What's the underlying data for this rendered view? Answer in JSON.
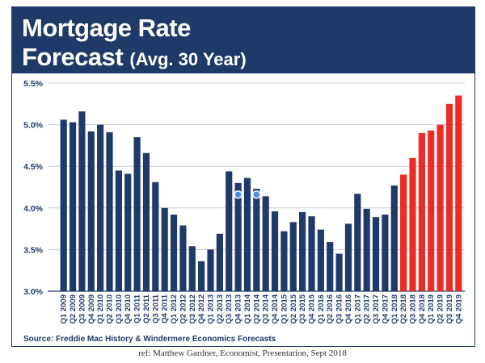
{
  "title_line1": "Mortgage Rate",
  "title_line2": "Forecast",
  "title_paren": "(Avg. 30 Year)",
  "source": "Source: Freddie Mac History & Windermere Economics Forecasts",
  "ref": "ref: Matthew Gardner, Economist, Presentation, Sept 2018",
  "chart_data": {
    "type": "bar",
    "title": "Mortgage Rate Forecast (Avg. 30 Year)",
    "xlabel": "",
    "ylabel": "",
    "ylim": [
      3.0,
      5.5
    ],
    "yticks": [
      "3.0%",
      "3.5%",
      "4.0%",
      "4.5%",
      "5.0%",
      "5.5%"
    ],
    "grid": true,
    "categories": [
      "Q1 2009",
      "Q2 2009",
      "Q3 2009",
      "Q4 2009",
      "Q1 2010",
      "Q2 2010",
      "Q3 2010",
      "Q4 2010",
      "Q1 2011",
      "Q2 2011",
      "Q3 2011",
      "Q4 2011",
      "Q1 2012",
      "Q2 2012",
      "Q3 2012",
      "Q4 2012",
      "Q1 2013",
      "Q2 2013",
      "Q3 2013",
      "Q4 2013",
      "Q1 2014",
      "Q2 2014",
      "Q3 2014",
      "Q4 2014",
      "Q1 2015",
      "Q2 2015",
      "Q3 2015",
      "Q4 2015",
      "Q1 2016",
      "Q2 2016",
      "Q3 2016",
      "Q4 2016",
      "Q1 2017",
      "Q2 2017",
      "Q3 2017",
      "Q4 2017",
      "Q1 2018",
      "Q2 2018",
      "Q3 2018",
      "Q4 2018",
      "Q1 2019",
      "Q2 2019",
      "Q3 2019",
      "Q4 2019"
    ],
    "values": [
      5.06,
      5.03,
      5.16,
      4.92,
      5.0,
      4.91,
      4.45,
      4.41,
      4.85,
      4.66,
      4.31,
      4.0,
      3.92,
      3.79,
      3.54,
      3.36,
      3.5,
      3.69,
      4.44,
      4.3,
      4.36,
      4.23,
      4.14,
      3.96,
      3.72,
      3.83,
      3.95,
      3.9,
      3.74,
      3.59,
      3.45,
      3.81,
      4.17,
      3.99,
      3.89,
      3.92,
      4.27,
      4.4,
      4.6,
      4.9,
      4.93,
      5.0,
      5.25,
      5.35
    ],
    "forecast_from_index": 37,
    "colors": {
      "actual": "#1f3a68",
      "forecast": "#ee2a24"
    },
    "markers_at": [
      "Q4 2013",
      "Q2 2014"
    ]
  }
}
